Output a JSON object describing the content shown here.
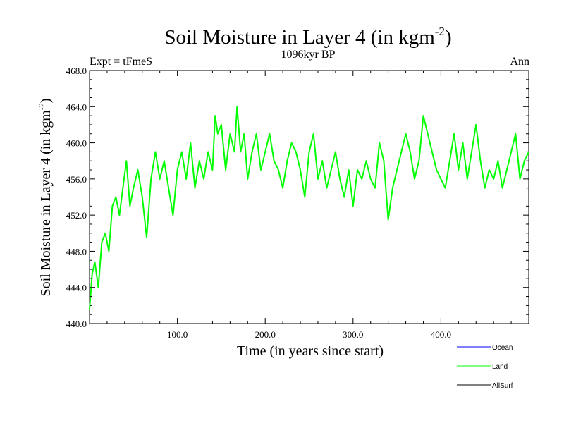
{
  "chart_data": {
    "type": "line",
    "title_main": "Soil Moisture in Layer 4 (in kgm",
    "title_sup": "-2",
    "title_end": ")",
    "subtitle": "1096kyr BP",
    "left_label": "Expt = tFmeS",
    "right_label": "Ann",
    "xlabel": "Time (in years since start)",
    "ylabel_main": "Soil Moisture in Layer 4 (in kgm",
    "ylabel_sup": "-2",
    "ylabel_end": ")",
    "xlim": [
      0,
      500
    ],
    "ylim": [
      440,
      468
    ],
    "x_ticks": [
      100,
      200,
      300,
      400
    ],
    "x_tick_labels": [
      "100.0",
      "200.0",
      "300.0",
      "400.0"
    ],
    "y_ticks": [
      440,
      444,
      448,
      452,
      456,
      460,
      464,
      468
    ],
    "y_tick_labels": [
      "440.0",
      "444.0",
      "448.0",
      "452.0",
      "456.0",
      "460.0",
      "464.0",
      "468.0"
    ],
    "legend": [
      {
        "name": "Ocean",
        "color": "#0000ff"
      },
      {
        "name": "Land",
        "color": "#00ff00"
      },
      {
        "name": "AllSurf",
        "color": "#000000"
      }
    ],
    "series": [
      {
        "name": "Land",
        "color": "#00ff00",
        "x": [
          0,
          3,
          6,
          10,
          14,
          18,
          22,
          26,
          30,
          34,
          38,
          42,
          46,
          50,
          55,
          60,
          65,
          70,
          75,
          80,
          85,
          90,
          95,
          100,
          105,
          110,
          115,
          120,
          125,
          130,
          135,
          140,
          143,
          146,
          150,
          155,
          160,
          165,
          168,
          172,
          176,
          180,
          185,
          190,
          195,
          200,
          205,
          210,
          215,
          220,
          225,
          230,
          235,
          240,
          245,
          250,
          255,
          260,
          265,
          270,
          275,
          280,
          285,
          290,
          295,
          300,
          305,
          310,
          315,
          320,
          325,
          330,
          335,
          340,
          345,
          350,
          355,
          360,
          365,
          370,
          375,
          380,
          385,
          390,
          395,
          400,
          405,
          410,
          415,
          420,
          425,
          430,
          435,
          440,
          445,
          450,
          455,
          460,
          465,
          470,
          475,
          480,
          485,
          490,
          495,
          500
        ],
        "values": [
          441.5,
          445.5,
          446.8,
          444,
          449,
          450,
          448,
          453,
          454,
          452,
          455,
          458,
          453,
          455,
          457,
          454,
          449.5,
          456,
          459,
          456,
          458,
          455,
          452,
          457,
          459,
          456,
          460,
          455,
          458,
          456,
          459,
          457,
          463,
          461,
          462,
          457,
          461,
          459,
          464,
          459,
          461,
          456,
          459,
          461,
          457,
          459,
          461,
          458,
          457,
          455,
          458,
          460,
          459,
          457,
          454,
          459,
          461,
          456,
          458,
          455,
          457,
          459,
          456,
          454,
          457,
          453,
          457,
          456,
          458,
          456,
          455,
          460,
          458,
          451.5,
          455,
          457,
          459,
          461,
          459,
          456,
          458,
          463,
          461,
          459,
          457,
          456,
          455,
          458,
          461,
          457,
          460,
          456,
          459,
          462,
          458,
          455,
          457,
          456,
          458,
          455,
          457,
          459,
          461,
          456,
          458,
          459
        ]
      }
    ]
  }
}
